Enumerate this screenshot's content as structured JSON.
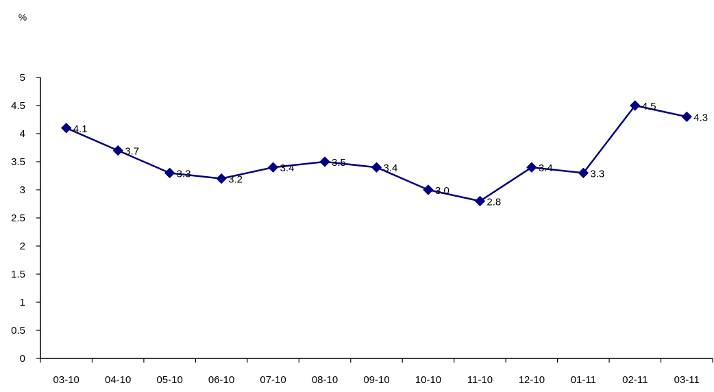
{
  "chart_data": {
    "type": "line",
    "title": "",
    "xlabel": "",
    "ylabel": "%",
    "categories": [
      "03-10",
      "04-10",
      "05-10",
      "06-10",
      "07-10",
      "08-10",
      "09-10",
      "10-10",
      "11-10",
      "12-10",
      "01-11",
      "02-11",
      "03-11"
    ],
    "series": [
      {
        "values": [
          4.1,
          3.7,
          3.3,
          3.2,
          3.4,
          3.5,
          3.4,
          3.0,
          2.8,
          3.4,
          3.3,
          4.5,
          4.3
        ],
        "data_labels": [
          "4.1",
          "3.7",
          "3.3",
          "3.2",
          "3.4",
          "3.5",
          "3.4",
          "3.0",
          "2.8",
          "3.4",
          "3.3",
          "4.5",
          "4.3"
        ],
        "color": "#000080",
        "marker": "diamond"
      }
    ],
    "ylim": [
      0,
      5
    ],
    "yticks": [
      "0",
      "0.5",
      "1",
      "1.5",
      "2",
      "2.5",
      "3",
      "3.5",
      "4",
      "4.5",
      "5"
    ],
    "grid": false,
    "legend": "none"
  }
}
